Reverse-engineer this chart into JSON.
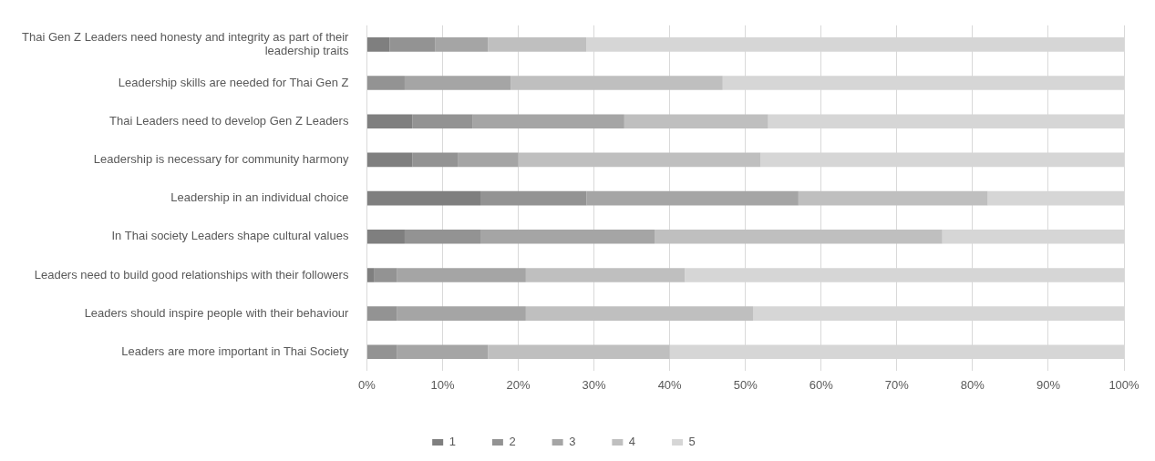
{
  "chart_data": {
    "type": "bar",
    "orientation": "horizontal",
    "stacked": true,
    "categories": [
      "Thai Gen Z Leaders need honesty and integrity as part of their leadership traits",
      "Leadership skills are needed for Thai Gen Z",
      "Thai Leaders need to develop Gen Z Leaders",
      "Leadership is necessary for community harmony",
      "Leadership in an individual choice",
      "In Thai society Leaders shape cultural values",
      "Leaders need to build good relationships with their followers",
      "Leaders should inspire people with their behaviour",
      "Leaders are more important in Thai Society"
    ],
    "series": [
      {
        "name": "1",
        "color": "#7f7f7f",
        "values": [
          3,
          0,
          6,
          6,
          15,
          5,
          1,
          0,
          0
        ]
      },
      {
        "name": "2",
        "color": "#939393",
        "values": [
          6,
          5,
          8,
          6,
          14,
          10,
          3,
          4,
          4
        ]
      },
      {
        "name": "3",
        "color": "#a5a5a5",
        "values": [
          7,
          14,
          20,
          8,
          28,
          23,
          17,
          17,
          12
        ]
      },
      {
        "name": "4",
        "color": "#bfbfbf",
        "values": [
          13,
          28,
          19,
          32,
          25,
          38,
          21,
          30,
          24
        ]
      },
      {
        "name": "5",
        "color": "#d6d6d6",
        "values": [
          71,
          53,
          47,
          48,
          18,
          24,
          58,
          49,
          60
        ]
      }
    ],
    "xlim": [
      0,
      100
    ],
    "xticks": [
      {
        "value": 0,
        "label": "0%"
      },
      {
        "value": 10,
        "label": "10%"
      },
      {
        "value": 20,
        "label": "20%"
      },
      {
        "value": 30,
        "label": "30%"
      },
      {
        "value": 40,
        "label": "40%"
      },
      {
        "value": 50,
        "label": "50%"
      },
      {
        "value": 60,
        "label": "60%"
      },
      {
        "value": 70,
        "label": "70%"
      },
      {
        "value": 80,
        "label": "80%"
      },
      {
        "value": 90,
        "label": "90%"
      },
      {
        "value": 100,
        "label": "100%"
      }
    ],
    "grid": "x",
    "legend": "bottom"
  }
}
